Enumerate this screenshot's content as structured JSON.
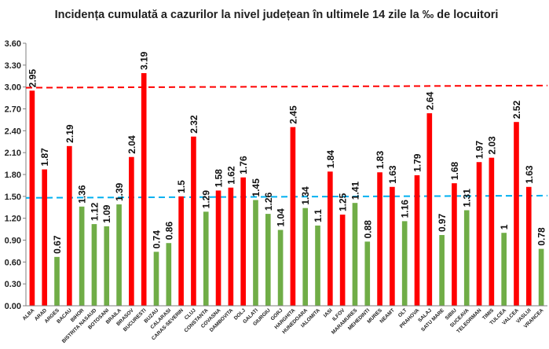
{
  "chart_data": {
    "type": "bar",
    "title": "Incidența cumulată a cazurilor la nivel județean în ultimele 14 zile la ‰ de locuitori",
    "xlabel": "",
    "ylabel": "",
    "ylim": [
      0,
      3.6
    ],
    "yticks": [
      "0.00",
      "0.30",
      "0.60",
      "0.90",
      "1.20",
      "1.50",
      "1.80",
      "2.10",
      "2.40",
      "2.70",
      "3.00",
      "3.30",
      "3.60"
    ],
    "grid": false,
    "legend": "none",
    "colors": {
      "above_threshold": "#ff0000",
      "below_threshold": "#70ad47",
      "red_line": "#ff0000",
      "blue_line": "#00b0f0",
      "axis": "#7f7f7f"
    },
    "reference_lines": [
      {
        "color": "red",
        "style": "dashed",
        "y_start": 2.99,
        "y_end": 3.02
      },
      {
        "color": "blue",
        "style": "dashed",
        "y_start": 1.48,
        "y_end": 1.51
      }
    ],
    "categories": [
      "ALBA",
      "ARAD",
      "ARGES",
      "BACAU",
      "BIHOR",
      "BISTRITA NASAUD",
      "BOTOSANI",
      "BRAILA",
      "BRASOV",
      "BUCURESTI",
      "BUZAU",
      "CALARASI",
      "CARAS-SEVERIN",
      "CLUJ",
      "CONSTANTA",
      "COVASNA",
      "DAMBOVITA",
      "DOLJ",
      "GALATI",
      "GIURGIU",
      "GORJ",
      "HARGHITA",
      "HUNEDOARA",
      "IALOMITA",
      "IASI",
      "ILFOV",
      "MARAMURES",
      "MEHEDINTI",
      "MURES",
      "NEAMT",
      "OLT",
      "PRAHOVA",
      "SALAJ",
      "SATU MARE",
      "SIBIU",
      "SUCEAVA",
      "TELEORMAN",
      "TIMIS",
      "TULCEA",
      "VALCEA",
      "VASLUI",
      "VRANCEA"
    ],
    "values": [
      2.95,
      1.87,
      0.67,
      2.19,
      1.36,
      1.12,
      1.09,
      1.39,
      2.04,
      3.19,
      0.74,
      0.86,
      1.5,
      2.32,
      1.29,
      1.58,
      1.62,
      1.76,
      1.45,
      1.26,
      1.04,
      2.45,
      1.34,
      1.1,
      1.84,
      1.25,
      1.41,
      0.88,
      1.83,
      1.63,
      1.16,
      1.79,
      2.64,
      0.97,
      1.68,
      1.31,
      1.97,
      2.03,
      1,
      2.52,
      1.63,
      0.78
    ],
    "data_labels": [
      "2.95",
      "1.87",
      "0.67",
      "2.19",
      "1.36",
      "1.12",
      "1.09",
      "1.39",
      "2.04",
      "3.19",
      "0.74",
      "0.86",
      "1.5",
      "2.32",
      "1.29",
      "1.58",
      "1.62",
      "1.76",
      "1.45",
      "1.26",
      "1.04",
      "2.45",
      "1.34",
      "1.1",
      "1.84",
      "1.25",
      "1.41",
      "0.88",
      "1.83",
      "1.63",
      "1.16",
      "1.79",
      "2.64",
      "0.97",
      "1.68",
      "1.31",
      "1.97",
      "2.03",
      "1",
      "2.52",
      "1.63",
      "0.78"
    ],
    "bar_colors": [
      "red",
      "red",
      "green",
      "red",
      "green",
      "green",
      "green",
      "green",
      "red",
      "red",
      "green",
      "green",
      "red",
      "red",
      "green",
      "red",
      "red",
      "red",
      "green",
      "green",
      "green",
      "red",
      "green",
      "green",
      "red",
      "red",
      "green",
      "green",
      "red",
      "red",
      "green",
      "red",
      "red",
      "green",
      "red",
      "green",
      "red",
      "red",
      "green",
      "red",
      "red",
      "green"
    ]
  }
}
